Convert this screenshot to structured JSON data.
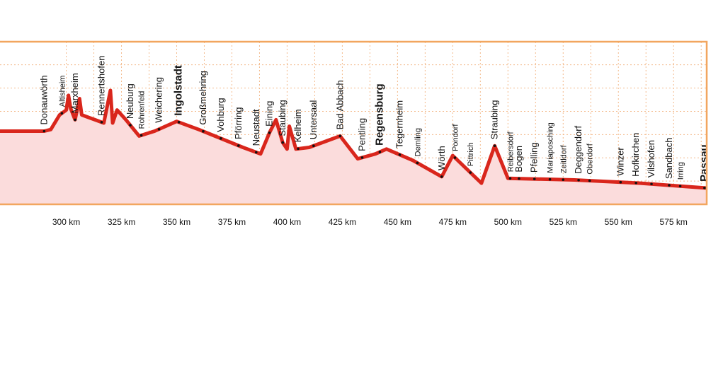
{
  "chart_data": {
    "type": "area",
    "title": "",
    "xlabel": "",
    "ylabel": "",
    "x_unit": "km",
    "xlim": [
      270,
      590
    ],
    "x_ticks": [
      "300 km",
      "325 km",
      "350 km",
      "375 km",
      "400 km",
      "425 km",
      "450 km",
      "475 km",
      "500 km",
      "525 km",
      "550 km",
      "575 km"
    ],
    "x_tick_values": [
      300,
      325,
      350,
      375,
      400,
      425,
      450,
      475,
      500,
      525,
      550,
      575
    ],
    "grid": true,
    "colors": {
      "line": "#d9261c",
      "area": "#fbdcdc",
      "grid": "#f3b98a",
      "frame": "#f2a65f",
      "dots": "#111111"
    },
    "profile": [
      [
        270,
        0.45
      ],
      [
        290,
        0.45
      ],
      [
        293,
        0.46
      ],
      [
        297,
        0.55
      ],
      [
        300,
        0.58
      ],
      [
        301,
        0.67
      ],
      [
        302,
        0.59
      ],
      [
        304,
        0.52
      ],
      [
        306,
        0.65
      ],
      [
        307,
        0.55
      ],
      [
        313,
        0.52
      ],
      [
        317,
        0.5
      ],
      [
        320,
        0.7
      ],
      [
        321,
        0.5
      ],
      [
        323,
        0.58
      ],
      [
        327,
        0.52
      ],
      [
        333,
        0.42
      ],
      [
        340,
        0.45
      ],
      [
        350,
        0.51
      ],
      [
        360,
        0.46
      ],
      [
        380,
        0.35
      ],
      [
        388,
        0.31
      ],
      [
        392,
        0.44
      ],
      [
        395,
        0.52
      ],
      [
        398,
        0.38
      ],
      [
        400,
        0.34
      ],
      [
        401,
        0.48
      ],
      [
        404,
        0.34
      ],
      [
        410,
        0.35
      ],
      [
        424,
        0.42
      ],
      [
        432,
        0.28
      ],
      [
        440,
        0.31
      ],
      [
        445,
        0.34
      ],
      [
        457,
        0.27
      ],
      [
        470,
        0.17
      ],
      [
        475,
        0.3
      ],
      [
        488,
        0.13
      ],
      [
        494,
        0.36
      ],
      [
        500,
        0.16
      ],
      [
        530,
        0.15
      ],
      [
        560,
        0.13
      ],
      [
        590,
        0.1
      ]
    ],
    "towns": [
      {
        "name": "Donauwörth",
        "km": 290,
        "size": "medium"
      },
      {
        "name": "Altisheim",
        "km": 298,
        "size": "minor"
      },
      {
        "name": "Marxheim",
        "km": 304,
        "size": "medium"
      },
      {
        "name": "Rennertshofen",
        "km": 316,
        "size": "medium"
      },
      {
        "name": "Neuburg",
        "km": 329,
        "size": "medium"
      },
      {
        "name": "Rohrenfeld",
        "km": 334,
        "size": "minor"
      },
      {
        "name": "Weichering",
        "km": 342,
        "size": "medium"
      },
      {
        "name": "Ingolstadt",
        "km": 351,
        "size": "major"
      },
      {
        "name": "Großmehring",
        "km": 362,
        "size": "medium"
      },
      {
        "name": "Vohburg",
        "km": 370,
        "size": "medium"
      },
      {
        "name": "Pförring",
        "km": 378,
        "size": "medium"
      },
      {
        "name": "Neustadt",
        "km": 386,
        "size": "medium"
      },
      {
        "name": "Eining",
        "km": 392,
        "size": "medium"
      },
      {
        "name": "Staubing",
        "km": 398,
        "size": "medium"
      },
      {
        "name": "Kelheim",
        "km": 405,
        "size": "medium"
      },
      {
        "name": "Untersaal",
        "km": 412,
        "size": "medium"
      },
      {
        "name": "Bad Abbach",
        "km": 424,
        "size": "medium"
      },
      {
        "name": "Pentling",
        "km": 434,
        "size": "medium"
      },
      {
        "name": "Regensburg",
        "km": 442,
        "size": "major"
      },
      {
        "name": "Tegernheim",
        "km": 451,
        "size": "medium"
      },
      {
        "name": "Demling",
        "km": 459,
        "size": "minor"
      },
      {
        "name": "Wörth",
        "km": 470,
        "size": "medium"
      },
      {
        "name": "Pondorf",
        "km": 476,
        "size": "minor"
      },
      {
        "name": "Pittrich",
        "km": 483,
        "size": "minor"
      },
      {
        "name": "Straubing",
        "km": 494,
        "size": "medium"
      },
      {
        "name": "Reibersdorf",
        "km": 501,
        "size": "minor"
      },
      {
        "name": "Bogen",
        "km": 505,
        "size": "medium"
      },
      {
        "name": "Pfelling",
        "km": 512,
        "size": "medium"
      },
      {
        "name": "Mariaposching",
        "km": 519,
        "size": "minor"
      },
      {
        "name": "Zeitldorf",
        "km": 525,
        "size": "minor"
      },
      {
        "name": "Deggendorf",
        "km": 532,
        "size": "medium"
      },
      {
        "name": "Oberdorf",
        "km": 537,
        "size": "minor"
      },
      {
        "name": "Winzer",
        "km": 551,
        "size": "medium"
      },
      {
        "name": "Hofkirchen",
        "km": 558,
        "size": "medium"
      },
      {
        "name": "Vilshofen",
        "km": 565,
        "size": "medium"
      },
      {
        "name": "Sandbach",
        "km": 573,
        "size": "medium"
      },
      {
        "name": "Irring",
        "km": 578,
        "size": "minor"
      },
      {
        "name": "Passau",
        "km": 589,
        "size": "major"
      }
    ]
  }
}
